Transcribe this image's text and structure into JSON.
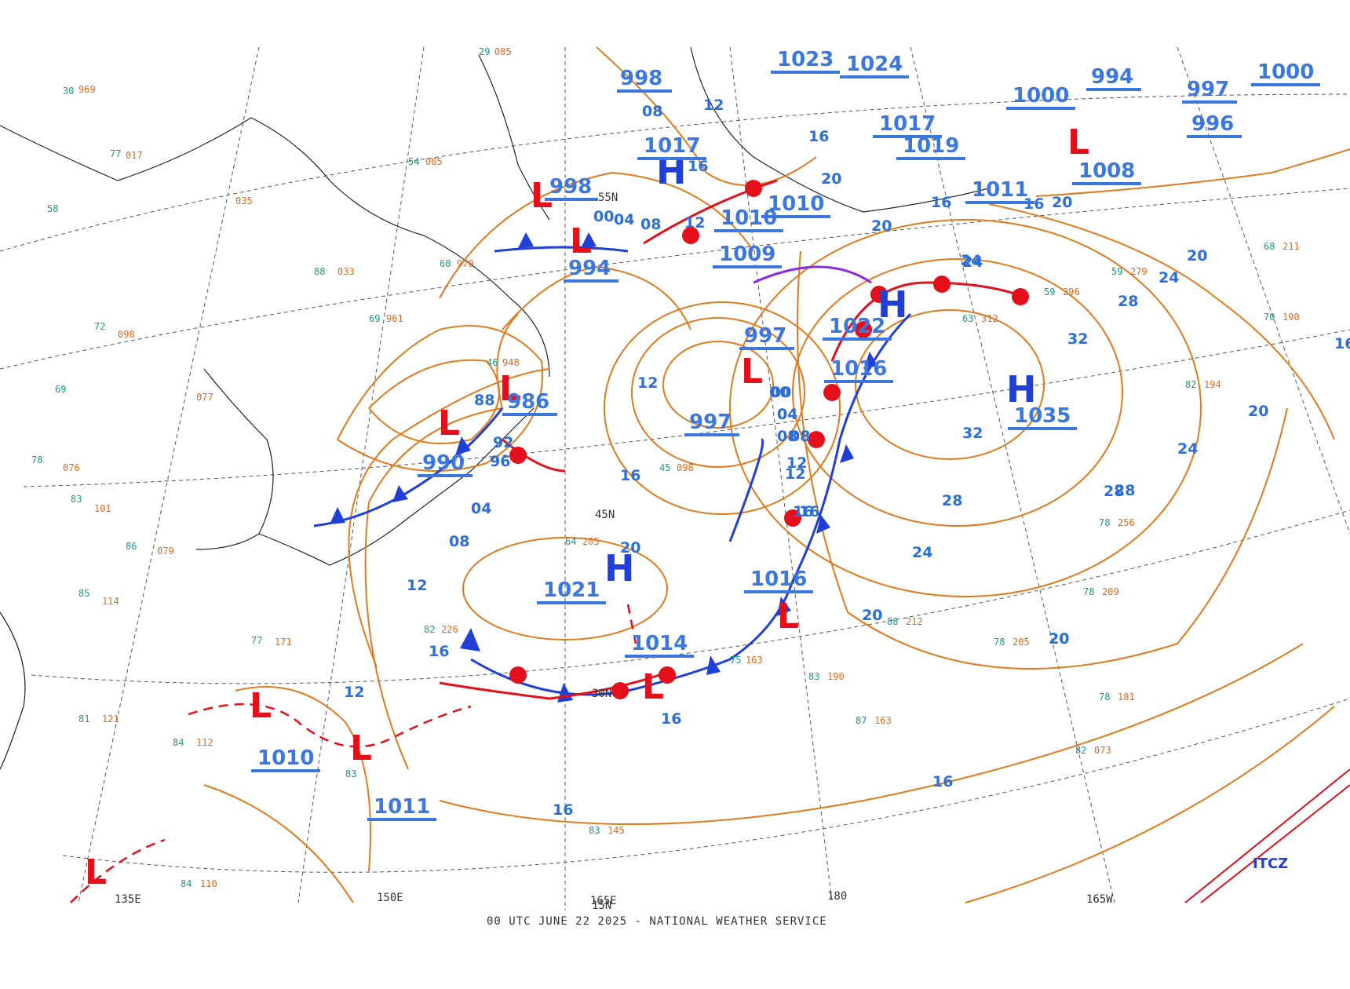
{
  "footer": "00 UTC JUNE 22 2025 - NATIONAL WEATHER SERVICE",
  "itcz_label": "ITCZ",
  "coordinate_labels": {
    "lon_135e": "135E",
    "lon_150e": "150E",
    "lon_165e": "165E",
    "lon_180": "180",
    "lon_165w": "165W",
    "lat_55n": "55N",
    "lat_45n": "45N",
    "lat_30n": "30N",
    "lat_15n": "15N"
  },
  "colors": {
    "isobar": "#e07a1e",
    "cold_front": "#1f3fd6",
    "warm_front": "#e3101b",
    "high": "#1f3fd6",
    "low": "#e3101b",
    "pressure_text": "#3a78e0",
    "occluded": "#8a2be2",
    "grid": "#555555",
    "coast": "#222222",
    "stations": "#1a9a8a"
  },
  "centers": {
    "highs": [
      {
        "id": "h1021",
        "symbol": "H",
        "value": "1021"
      },
      {
        "id": "h1035",
        "symbol": "H",
        "value": "1035"
      },
      {
        "id": "h1022",
        "symbol": "H",
        "value": "1022"
      },
      {
        "id": "h1017",
        "symbol": "H",
        "value": "1017"
      }
    ],
    "lows": [
      {
        "id": "l986",
        "symbol": "L",
        "value": "986"
      },
      {
        "id": "l990",
        "symbol": "L",
        "value": "990"
      },
      {
        "id": "l994",
        "symbol": "L",
        "value": "994"
      },
      {
        "id": "l998",
        "symbol": "L",
        "value": "998"
      },
      {
        "id": "l997",
        "symbol": "L",
        "value": "997"
      },
      {
        "id": "l1016",
        "symbol": "L",
        "value": "1016"
      },
      {
        "id": "l1014",
        "symbol": "L",
        "value": "1014"
      },
      {
        "id": "l1010",
        "symbol": "L",
        "value": "1010"
      },
      {
        "id": "l1011",
        "symbol": "L",
        "value": "1011"
      },
      {
        "id": "l1000",
        "symbol": "L",
        "value": "1000"
      },
      {
        "id": "l1008",
        "symbol": "L",
        "value": "1008"
      }
    ]
  },
  "pressure_values": {
    "p998a": "998",
    "p1017": "1017",
    "p998b": "998",
    "p994": "994",
    "p986": "986",
    "p990": "990",
    "p1010": "1010",
    "p1009": "1009",
    "p997": "997",
    "p1022": "1022",
    "p1016a": "1016",
    "p997b": "997",
    "p1021": "1021",
    "p1016b": "1016",
    "p1014": "1014",
    "p1010b": "1010",
    "p1011": "1011",
    "p1035": "1035",
    "p1023": "1023",
    "p1024": "1024",
    "p1011b": "1011",
    "p1017b": "1017",
    "p1019": "1019",
    "p1000": "1000",
    "p994b": "994",
    "p1008": "1008",
    "p997c": "997",
    "p996": "996",
    "p1000b": "1000",
    "p1010c": "1010"
  },
  "isobar_labels": {
    "i1": "08",
    "i2": "12",
    "i3": "16",
    "i4": "00",
    "i5": "04",
    "i6": "08",
    "i7": "12",
    "i8": "16",
    "i9": "20",
    "i10": "24",
    "i11": "28",
    "i12": "32",
    "i13": "32",
    "i14": "28",
    "i15": "24",
    "i16": "20",
    "i17": "16",
    "i18": "12",
    "i19": "08",
    "i20": "04",
    "i21": "00",
    "i22": "96",
    "i23": "92",
    "i24": "88",
    "i25": "04",
    "i26": "08",
    "i27": "12",
    "i28": "16",
    "i29": "20",
    "i30": "16",
    "i31": "12",
    "i32": "16",
    "i33": "16",
    "i34": "20",
    "i35": "24",
    "i36": "28",
    "i37": "20",
    "i38": "16",
    "i39": "24",
    "i40": "28",
    "i41": "20",
    "i42": "16",
    "i43": "12",
    "i44": "08",
    "i45": "04",
    "i46": "00",
    "i47": "20",
    "i48": "16",
    "i49": "12",
    "i50": "16",
    "i51": "20",
    "i52": "24",
    "i53": "20",
    "i54": "16"
  }
}
